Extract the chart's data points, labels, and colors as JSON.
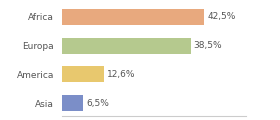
{
  "categories": [
    "Africa",
    "Europa",
    "America",
    "Asia"
  ],
  "values": [
    42.5,
    38.5,
    12.6,
    6.5
  ],
  "labels": [
    "42,5%",
    "38,5%",
    "12,6%",
    "6,5%"
  ],
  "colors": [
    "#e8a97e",
    "#b5c98e",
    "#e8c86e",
    "#7b8ec8"
  ],
  "xlim": [
    0,
    55
  ],
  "background_color": "#ffffff",
  "label_fontsize": 6.5,
  "tick_fontsize": 6.5,
  "bar_height": 0.55
}
